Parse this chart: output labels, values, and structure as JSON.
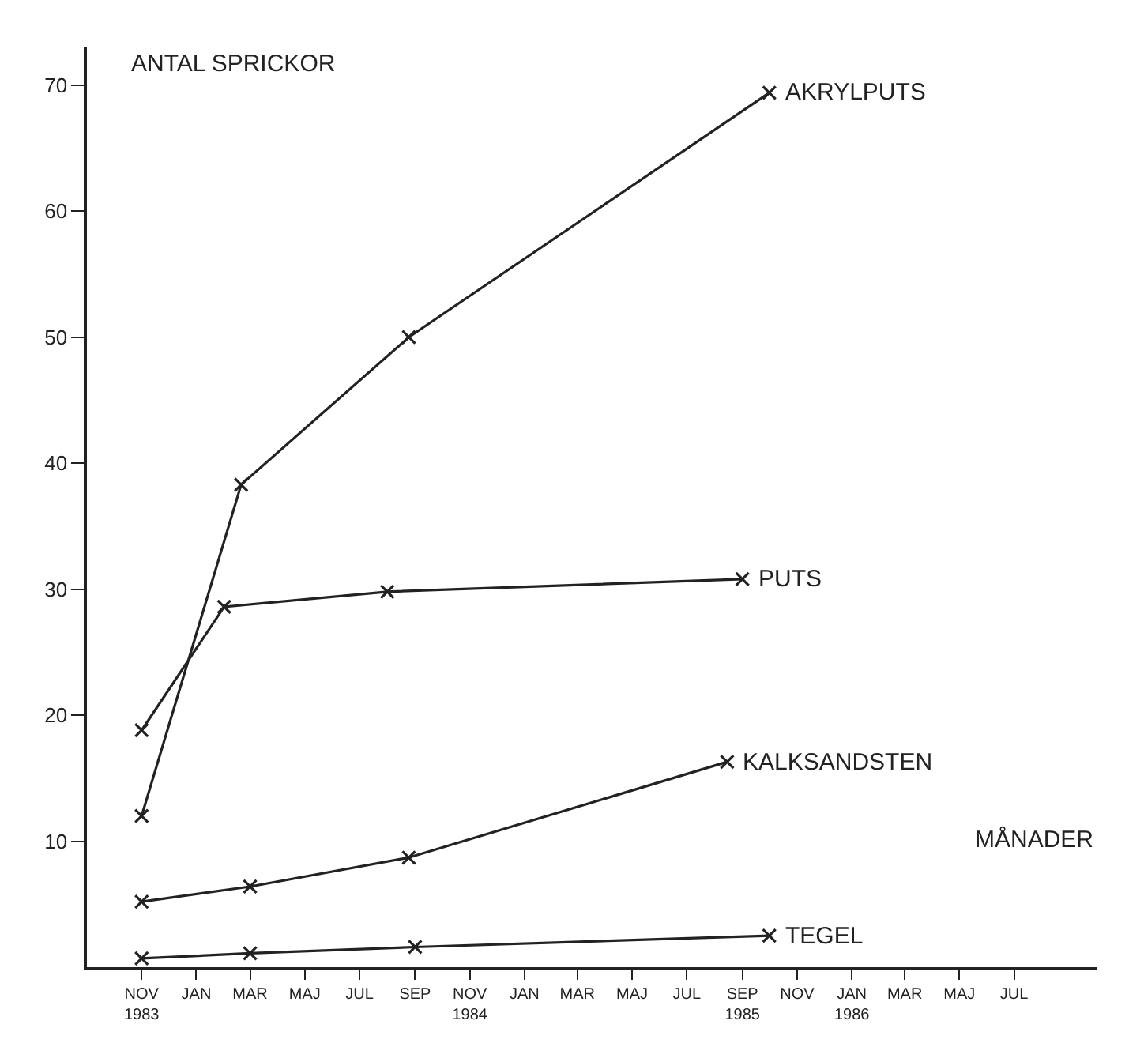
{
  "chart_data": {
    "type": "line",
    "xlabel": "MÅNADER",
    "ylabel": "ANTAL SPRICKOR",
    "xlim": [
      "1983-09-01",
      "1986-10-01"
    ],
    "ylim": [
      0,
      73
    ],
    "yticks": [
      10,
      20,
      30,
      40,
      50,
      60,
      70
    ],
    "xticks": [
      {
        "value": "1983-11-01",
        "label": "NOV\n1983"
      },
      {
        "value": "1984-01-01",
        "label": "JAN"
      },
      {
        "value": "1984-03-01",
        "label": "MAR"
      },
      {
        "value": "1984-05-01",
        "label": "MAJ"
      },
      {
        "value": "1984-07-01",
        "label": "JUL"
      },
      {
        "value": "1984-09-01",
        "label": "SEP"
      },
      {
        "value": "1984-11-01",
        "label": "NOV\n1984"
      },
      {
        "value": "1985-01-01",
        "label": "JAN"
      },
      {
        "value": "1985-03-01",
        "label": "MAR"
      },
      {
        "value": "1985-05-01",
        "label": "MAJ"
      },
      {
        "value": "1985-07-01",
        "label": "JUL"
      },
      {
        "value": "1985-09-01",
        "label": "SEP\n1985"
      },
      {
        "value": "1985-11-01",
        "label": "NOV"
      },
      {
        "value": "1986-01-01",
        "label": "JAN\n1986"
      },
      {
        "value": "1986-03-01",
        "label": "MAR"
      },
      {
        "value": "1986-05-01",
        "label": "MAJ"
      },
      {
        "value": "1986-07-01",
        "label": "JUL"
      }
    ],
    "legend": false,
    "marker": "cross",
    "line_style": "solid",
    "series": [
      {
        "name": "AKRYLPUTS",
        "color": "#222222",
        "x": [
          "1983-11-01",
          "1984-02-20",
          "1984-08-25",
          "1985-10-01"
        ],
        "values": [
          12,
          38.3,
          50,
          69.4
        ]
      },
      {
        "name": "PUTS",
        "color": "#222222",
        "x": [
          "1983-11-01",
          "1984-02-01",
          "1984-08-01",
          "1985-09-01"
        ],
        "values": [
          18.8,
          28.6,
          29.8,
          30.8
        ]
      },
      {
        "name": "KALKSANDSTEN",
        "color": "#222222",
        "x": [
          "1983-11-01",
          "1984-03-01",
          "1984-08-25",
          "1985-08-15"
        ],
        "values": [
          5.2,
          6.4,
          8.7,
          16.3
        ]
      },
      {
        "name": "TEGEL",
        "color": "#222222",
        "x": [
          "1983-11-01",
          "1984-03-01",
          "1984-09-01",
          "1985-10-01"
        ],
        "values": [
          0.7,
          1.1,
          1.6,
          2.5
        ]
      }
    ]
  }
}
